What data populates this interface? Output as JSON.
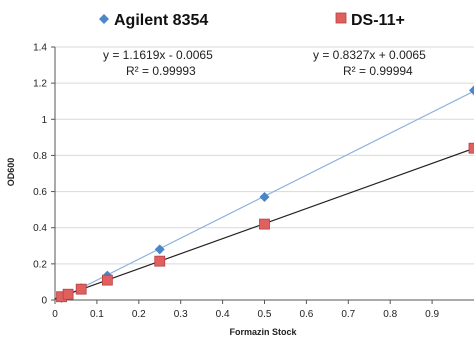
{
  "chart_data": {
    "type": "scatter",
    "title": "",
    "xlabel": "Formazin Stock",
    "ylabel": "OD600",
    "xlim": [
      0,
      1
    ],
    "ylim": [
      0,
      1.4
    ],
    "x_ticks": [
      "0",
      "0.1",
      "0.2",
      "0.3",
      "0.4",
      "0.5",
      "0.6",
      "0.7",
      "0.8",
      "0.9"
    ],
    "y_ticks": [
      "0",
      "0.2",
      "0.4",
      "0.6",
      "0.8",
      "1",
      "1.2",
      "1.4"
    ],
    "legend_position": "top",
    "series": [
      {
        "name": "Agilent 8354",
        "marker": "diamond",
        "color": "#4a86c8",
        "trendline_color": "#8fb4dd",
        "x": [
          0.0156,
          0.03125,
          0.0625,
          0.125,
          0.25,
          0.5,
          1.0
        ],
        "y": [
          0.012,
          0.03,
          0.066,
          0.135,
          0.28,
          0.57,
          1.16
        ],
        "trendline": {
          "slope": 1.1619,
          "intercept": -0.0065
        },
        "equation": "y = 1.1619x - 0.0065",
        "r2": "R² = 0.99993"
      },
      {
        "name": "DS-11+",
        "marker": "square",
        "color": "#e06060",
        "trendline_color": "#222222",
        "x": [
          0.0156,
          0.03125,
          0.0625,
          0.125,
          0.25,
          0.5,
          1.0
        ],
        "y": [
          0.018,
          0.032,
          0.06,
          0.11,
          0.215,
          0.42,
          0.84
        ],
        "trendline": {
          "slope": 0.8327,
          "intercept": 0.0065
        },
        "equation": "y = 0.8327x + 0.0065",
        "r2": "R² = 0.99994"
      }
    ]
  }
}
